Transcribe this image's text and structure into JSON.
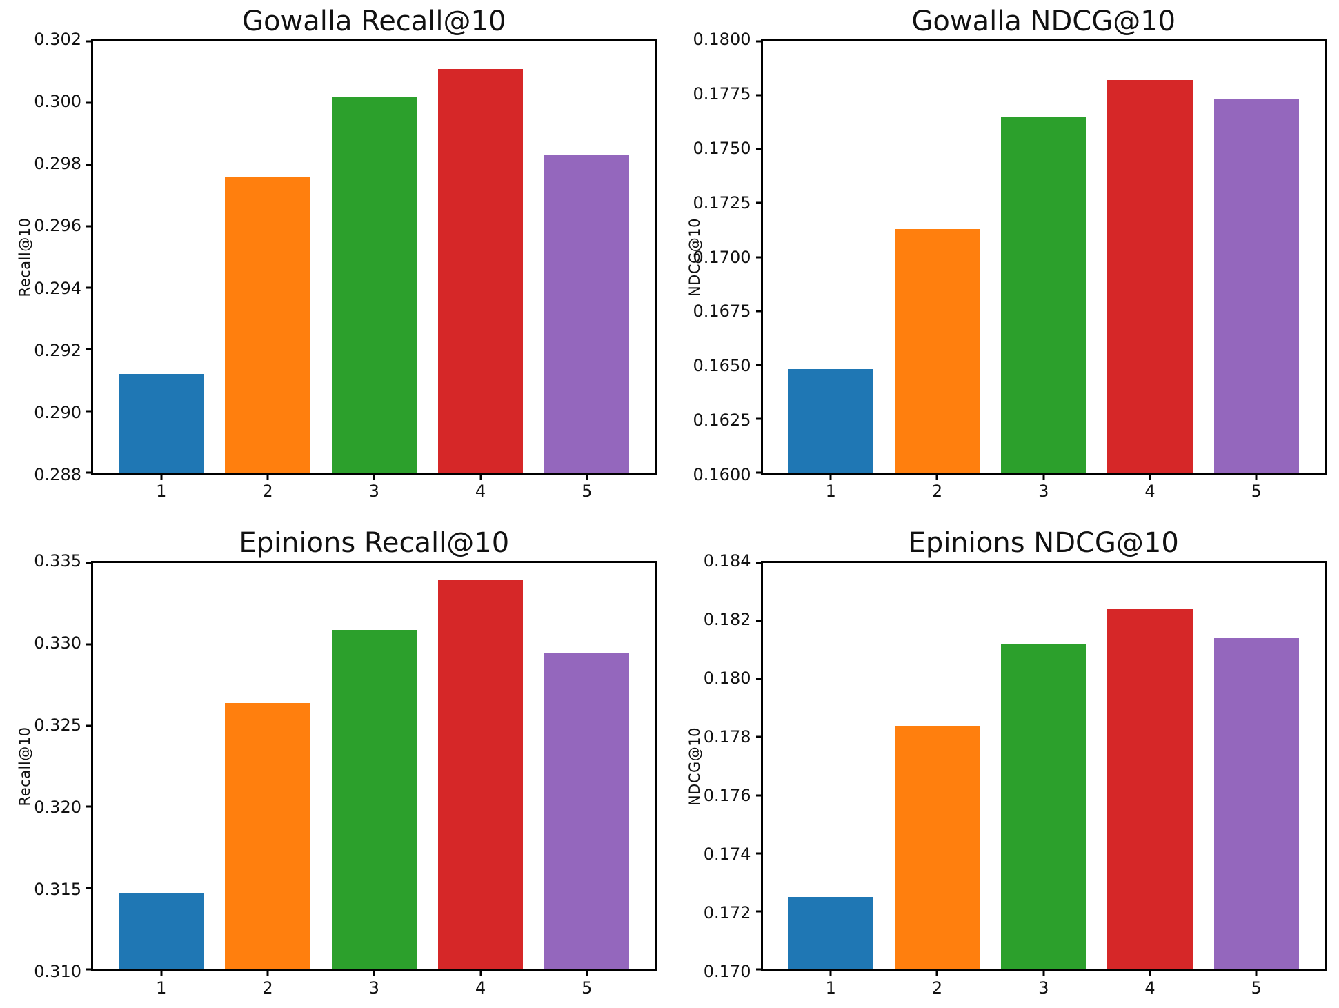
{
  "palette": {
    "bar_colors": [
      "#1f77b4",
      "#ff7f0e",
      "#2ca02c",
      "#d62728",
      "#9467bd"
    ],
    "axis_color": "#000000",
    "text_color": "#111111",
    "background": "#ffffff"
  },
  "chart_data": [
    {
      "type": "bar",
      "title": "Gowalla Recall@10",
      "ylabel": "Recall@10",
      "xlabel": "",
      "categories": [
        "1",
        "2",
        "3",
        "4",
        "5"
      ],
      "values": [
        0.2912,
        0.2976,
        0.3002,
        0.3011,
        0.2983
      ],
      "ylim": [
        0.288,
        0.302
      ],
      "ytick_labels": [
        "0.288",
        "0.290",
        "0.292",
        "0.294",
        "0.296",
        "0.298",
        "0.300",
        "0.302"
      ],
      "grid": false,
      "legend": null
    },
    {
      "type": "bar",
      "title": "Gowalla NDCG@10",
      "ylabel": "NDCG@10",
      "xlabel": "",
      "categories": [
        "1",
        "2",
        "3",
        "4",
        "5"
      ],
      "values": [
        0.1648,
        0.1713,
        0.1765,
        0.1782,
        0.1773
      ],
      "ylim": [
        0.16,
        0.18
      ],
      "ytick_labels": [
        "0.1600",
        "0.1625",
        "0.1650",
        "0.1675",
        "0.1700",
        "0.1725",
        "0.1750",
        "0.1775",
        "0.1800"
      ],
      "grid": false,
      "legend": null
    },
    {
      "type": "bar",
      "title": "Epinions Recall@10",
      "ylabel": "Recall@10",
      "xlabel": "",
      "categories": [
        "1",
        "2",
        "3",
        "4",
        "5"
      ],
      "values": [
        0.3147,
        0.3264,
        0.3309,
        0.334,
        0.3295
      ],
      "ylim": [
        0.31,
        0.335
      ],
      "ytick_labels": [
        "0.310",
        "0.315",
        "0.320",
        "0.325",
        "0.330",
        "0.335"
      ],
      "grid": false,
      "legend": null
    },
    {
      "type": "bar",
      "title": "Epinions NDCG@10",
      "ylabel": "NDCG@10",
      "xlabel": "",
      "categories": [
        "1",
        "2",
        "3",
        "4",
        "5"
      ],
      "values": [
        0.1725,
        0.1784,
        0.1812,
        0.1824,
        0.1814
      ],
      "ylim": [
        0.17,
        0.184
      ],
      "ytick_labels": [
        "0.170",
        "0.172",
        "0.174",
        "0.176",
        "0.178",
        "0.180",
        "0.182",
        "0.184"
      ],
      "grid": false,
      "legend": null
    }
  ]
}
